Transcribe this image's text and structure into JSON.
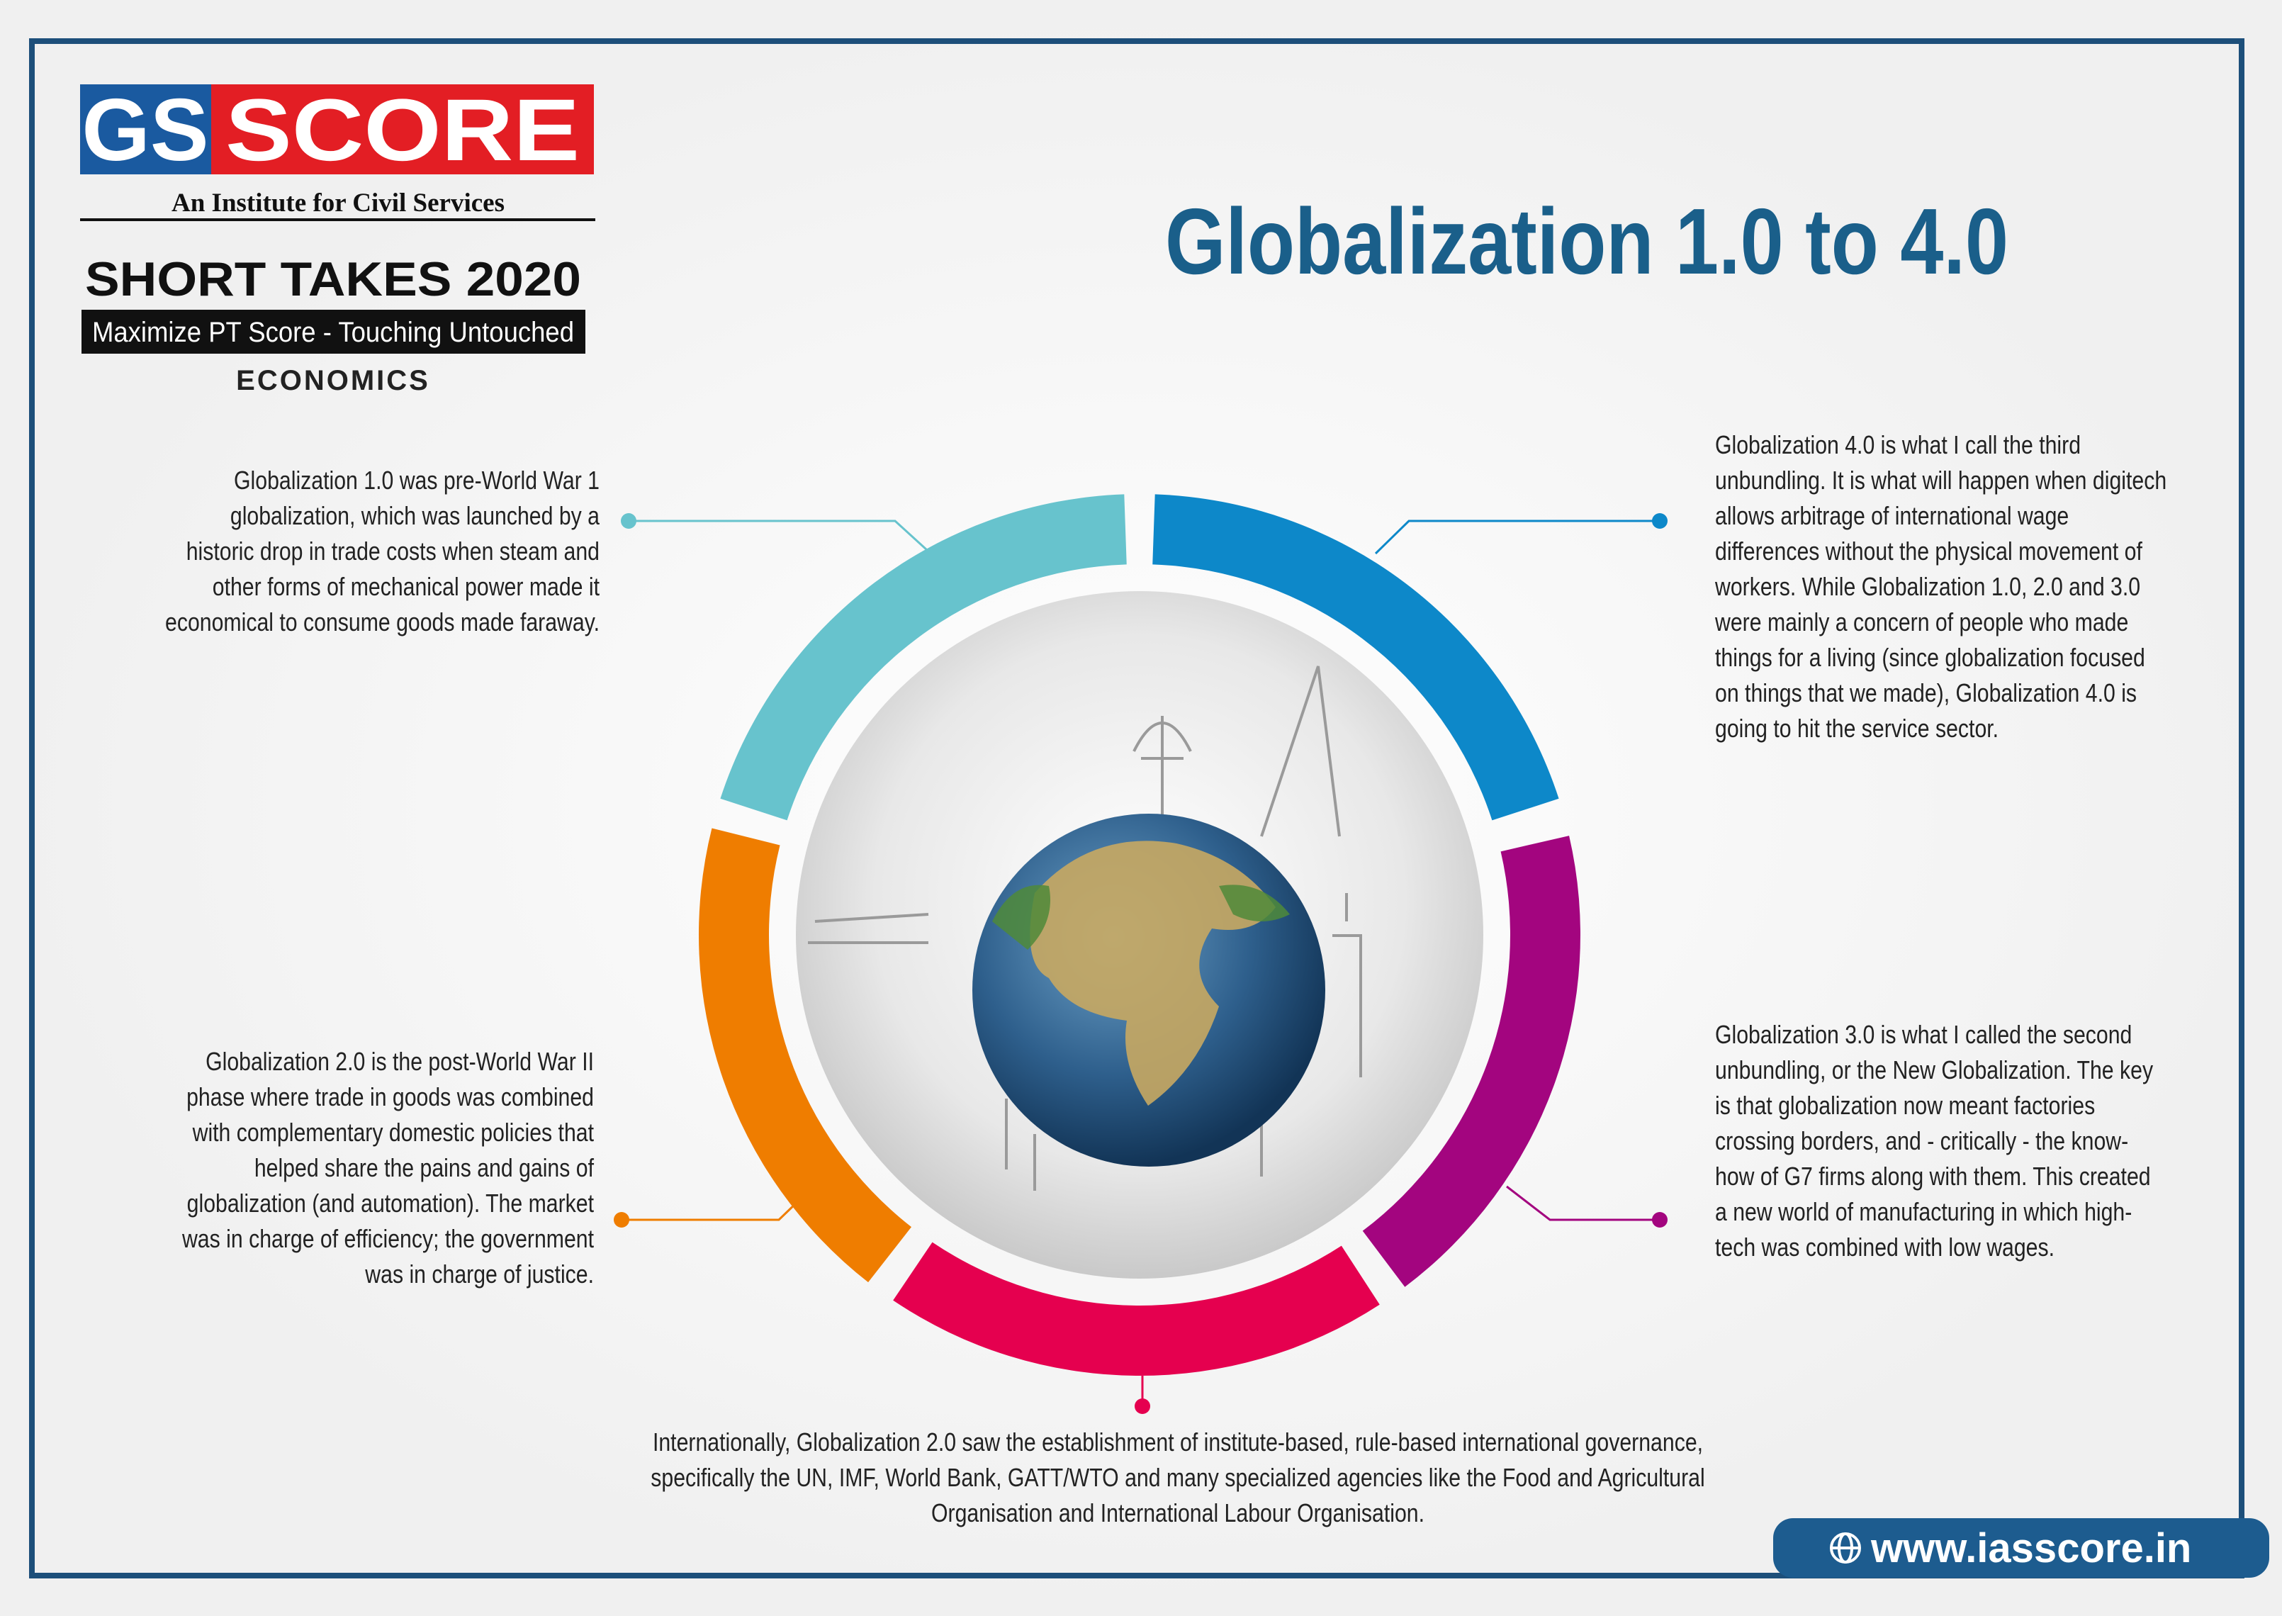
{
  "header": {
    "logo_left": "GS",
    "logo_right": "SCORE",
    "tagline": "An Institute for Civil Services",
    "series": "SHORT TAKES 2020",
    "subtitle": "Maximize PT Score - Touching Untouched",
    "subject": "ECONOMICS"
  },
  "title": "Globalization 1.0 to 4.0",
  "segments": [
    {
      "text": "Globalization 1.0 was pre-World War 1 globalization, which was launched by a historic drop in trade costs when steam and other forms of mechanical power made it economical to consume goods made faraway."
    },
    {
      "text": "Globalization 4.0 is what I call the third unbundling. It is what will happen when digitech allows arbitrage of international wage differences without the physical movement of workers. While Globalization 1.0, 2.0 and 3.0 were mainly a concern of people who made things for a living (since globalization focused on things that we made), Globalization 4.0 is going to hit the service sector."
    },
    {
      "text": "Globalization 3.0 is what I called the second unbundling, or the New Globalization. The key is that globalization now meant factories crossing borders, and - critically - the know-how of G7 firms along with them. This created a new world of manufacturing in which high-tech was combined with low wages."
    },
    {
      "text": "Internationally, Globalization 2.0 saw the establishment of institute-based, rule-based international governance, specifically the UN, IMF, World Bank, GATT/WTO and many specialized agencies like the Food and Agricultural Organisation and International Labour Organisation."
    },
    {
      "text": "Globalization 2.0 is the post-World War II phase where trade in goods was combined with complementary domestic policies that helped share the pains and gains of globalization (and automation). The market was in charge of efficiency; the government was in charge of justice."
    }
  ],
  "footer": {
    "url": "www.iasscore.in"
  }
}
